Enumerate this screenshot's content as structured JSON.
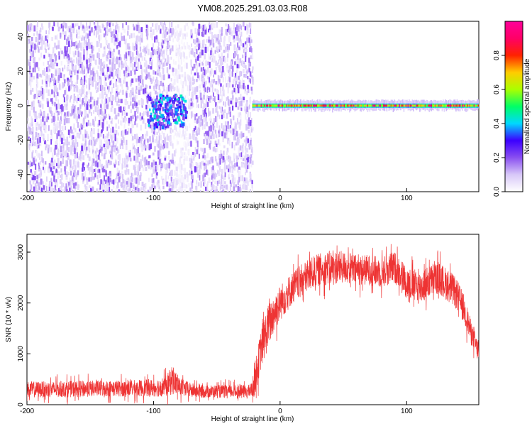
{
  "title": "YM08.2025.291.03.03.R08",
  "chart_data": [
    {
      "type": "heatmap",
      "xlabel": "Height of straight line (km)",
      "ylabel": "Frequency (Hz)",
      "xlim": [
        -200,
        157
      ],
      "ylim": [
        -50,
        49
      ],
      "xticks": [
        -200,
        -100,
        0,
        100
      ],
      "yticks": [
        40,
        20,
        0,
        -20,
        -40
      ],
      "colorbar": {
        "label": "Normalized spectral amplitude",
        "range": [
          0,
          1
        ],
        "ticks": [
          "0.0",
          "0.2",
          "0.4",
          "0.6",
          "0.8"
        ],
        "colors": [
          "#ffffff",
          "#d8c8f8",
          "#8a4ff0",
          "#3c00ff",
          "#00d8ff",
          "#00ff66",
          "#aaff00",
          "#ffcc00",
          "#ff2200",
          "#ff0066",
          "#ff0099"
        ]
      },
      "regions": [
        {
          "kind": "noise",
          "x": [
            -200,
            -22
          ],
          "f": [
            -50,
            49
          ],
          "amplitude": 0.08
        },
        {
          "kind": "noise",
          "x": [
            -200,
            -22
          ],
          "f": [
            -50,
            49
          ],
          "amplitude": 0.15
        },
        {
          "kind": "blob",
          "x": [
            -105,
            -75
          ],
          "f": [
            -12,
            7
          ],
          "amplitude": 0.4
        },
        {
          "kind": "band",
          "x": [
            -22,
            157
          ],
          "f": [
            -2,
            2
          ],
          "amplitude": 0.9
        }
      ]
    },
    {
      "type": "line",
      "xlabel": "Height of straight line (km)",
      "ylabel": "SNR (10 * v/v)",
      "xlim": [
        -200,
        157
      ],
      "ylim": [
        0,
        3350
      ],
      "xticks": [
        -200,
        -100,
        0,
        100
      ],
      "yticks": [
        0,
        1000,
        2000,
        3000
      ],
      "color": "#ee3333",
      "series": [
        {
          "envelope": {
            "x": [
              -200,
              -180,
              -160,
              -140,
              -120,
              -100,
              -90,
              -85,
              -80,
              -70,
              -60,
              -40,
              -25,
              -22,
              -20,
              -15,
              -10,
              -5,
              0,
              10,
              20,
              30,
              40,
              50,
              60,
              70,
              80,
              90,
              95,
              100,
              110,
              120,
              125,
              130,
              135,
              140,
              145,
              150,
              157
            ],
            "mean": [
              300,
              300,
              310,
              320,
              320,
              330,
              360,
              500,
              350,
              280,
              260,
              260,
              260,
              300,
              500,
              1100,
              1500,
              1800,
              2000,
              2300,
              2500,
              2650,
              2700,
              2700,
              2650,
              2650,
              2600,
              2700,
              2600,
              2400,
              2300,
              2450,
              2500,
              2400,
              2300,
              2150,
              1900,
              1500,
              1000
            ],
            "spread": [
              200,
              200,
              200,
              200,
              200,
              220,
              250,
              380,
              220,
              180,
              160,
              160,
              160,
              200,
              400,
              500,
              550,
              500,
              450,
              400,
              400,
              400,
              420,
              400,
              380,
              380,
              380,
              400,
              380,
              400,
              420,
              400,
              400,
              400,
              400,
              380,
              350,
              300,
              250
            ]
          }
        }
      ]
    }
  ]
}
